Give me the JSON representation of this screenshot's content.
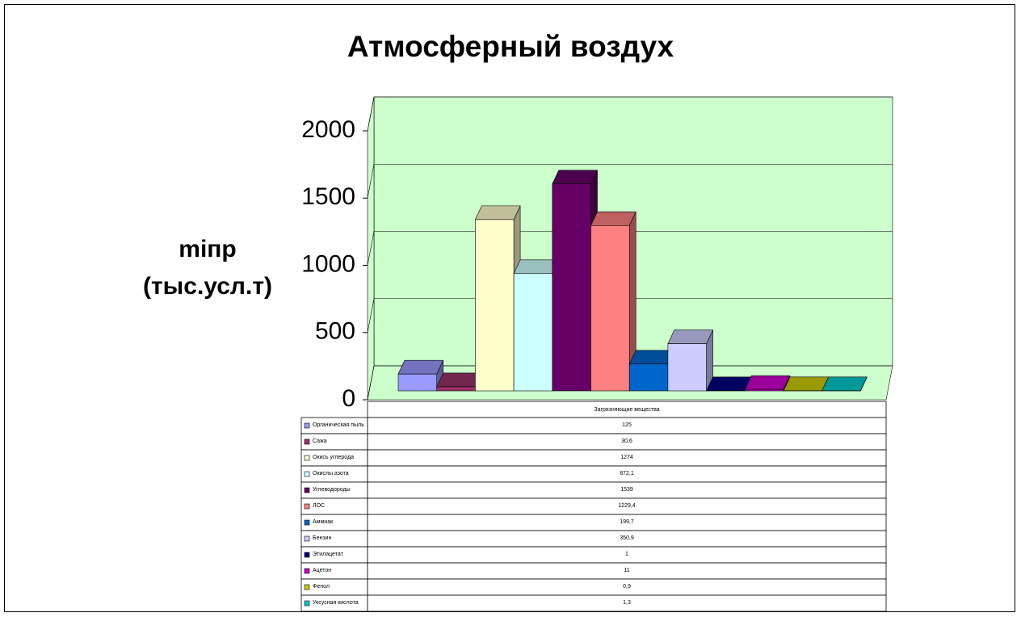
{
  "chart_data": {
    "type": "bar3d",
    "title": "Атмосферный воздух",
    "y_label": [
      "mіпр",
      "(тыс.усл.т)"
    ],
    "categories": [
      "Загрязняющие вещества"
    ],
    "ylim": [
      0,
      2000
    ],
    "yticks": [
      0,
      500,
      1000,
      1500,
      2000
    ],
    "grid": true,
    "wall_color": "#ccffcc",
    "series": [
      {
        "name": "Органическая пыль",
        "color": "#9999ff",
        "values": [
          125
        ],
        "value_labels": [
          "125"
        ]
      },
      {
        "name": "Сажа",
        "color": "#993366",
        "values": [
          30.6
        ],
        "value_labels": [
          "30,6"
        ]
      },
      {
        "name": "Окись углерода",
        "color": "#ffffcc",
        "values": [
          1274
        ],
        "value_labels": [
          "1274"
        ]
      },
      {
        "name": "Окислы азота",
        "color": "#ccffff",
        "values": [
          872.1
        ],
        "value_labels": [
          "872,1"
        ]
      },
      {
        "name": "Углеводороды",
        "color": "#660066",
        "values": [
          1539
        ],
        "value_labels": [
          "1539"
        ]
      },
      {
        "name": "ЛОС",
        "color": "#ff8080",
        "values": [
          1229.4
        ],
        "value_labels": [
          "1229,4"
        ]
      },
      {
        "name": "Аммиак",
        "color": "#0066cc",
        "values": [
          199.7
        ],
        "value_labels": [
          "199,7"
        ]
      },
      {
        "name": "Бензин",
        "color": "#ccccff",
        "values": [
          350.9
        ],
        "value_labels": [
          "350,9"
        ]
      },
      {
        "name": "Этилацетат",
        "color": "#000080",
        "values": [
          1
        ],
        "value_labels": [
          "1"
        ]
      },
      {
        "name": "Ацетон",
        "color": "#cc00cc",
        "values": [
          11
        ],
        "value_labels": [
          "11"
        ]
      },
      {
        "name": "Фенол",
        "color": "#cccc00",
        "values": [
          0.9
        ],
        "value_labels": [
          "0,9"
        ]
      },
      {
        "name": "Уксусная кислота",
        "color": "#00cccc",
        "values": [
          1.3
        ],
        "value_labels": [
          "1,3"
        ]
      }
    ]
  }
}
